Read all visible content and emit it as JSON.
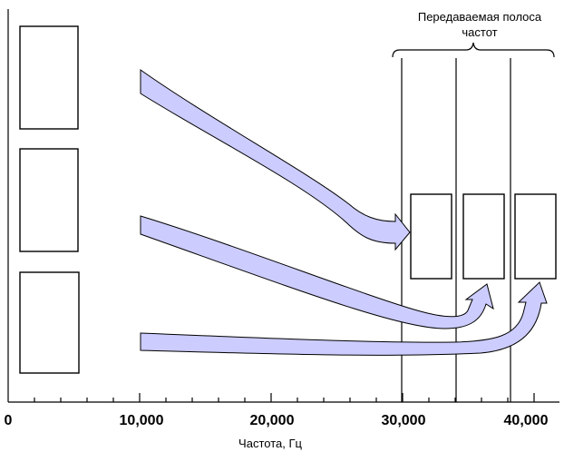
{
  "x_axis": {
    "title": "Частота, Гц",
    "ticks": [
      "0",
      "10,000",
      "20,000",
      "30,000",
      "40,000"
    ]
  },
  "band": {
    "title_line1": "Передаваемая полоса",
    "title_line2": "частот"
  },
  "colors": {
    "arrow_fill": "#ccccff",
    "stroke": "#000000",
    "background": "#ffffff"
  }
}
